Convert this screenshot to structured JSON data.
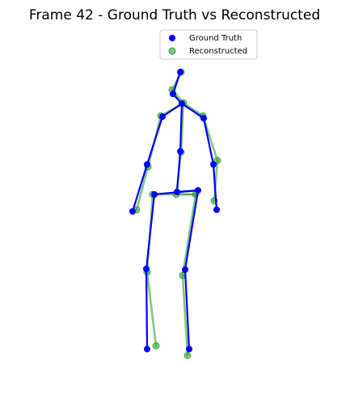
{
  "chart_data": {
    "type": "scatter",
    "title": "Frame 42 - Ground Truth vs Reconstructed",
    "xlabel": "",
    "ylabel": "",
    "axes_visible": false,
    "grid": false,
    "legend_position": "top-center",
    "bones": [
      [
        0,
        1
      ],
      [
        1,
        2
      ],
      [
        2,
        3
      ],
      [
        3,
        4
      ],
      [
        4,
        5
      ],
      [
        2,
        6
      ],
      [
        6,
        7
      ],
      [
        7,
        8
      ],
      [
        2,
        9
      ],
      [
        9,
        10
      ],
      [
        10,
        11
      ],
      [
        11,
        12
      ],
      [
        12,
        13
      ],
      [
        11,
        14
      ],
      [
        14,
        15
      ],
      [
        15,
        16
      ]
    ],
    "series": [
      {
        "name": "Ground Truth",
        "color": "#0000ff",
        "points": [
          [
            223,
            89
          ],
          [
            214,
            116
          ],
          [
            225,
            128
          ],
          [
            201,
            144
          ],
          [
            182,
            203
          ],
          [
            164,
            261
          ],
          [
            252,
            146
          ],
          [
            264,
            203
          ],
          [
            268,
            259
          ],
          [
            223,
            187
          ],
          [
            219,
            237
          ],
          [
            245,
            235
          ],
          [
            229,
            333
          ],
          [
            234,
            431
          ],
          [
            191,
            240
          ],
          [
            181,
            332
          ],
          [
            182,
            431
          ]
        ]
      },
      {
        "name": "Reconstructed",
        "color": "#2ca02c",
        "opacity": 0.6,
        "points": [
          [
            224,
            89
          ],
          [
            213,
            111
          ],
          [
            227,
            127
          ],
          [
            199,
            143
          ],
          [
            183,
            206
          ],
          [
            169,
            259
          ],
          [
            251,
            143
          ],
          [
            269,
            198
          ],
          [
            265,
            248
          ],
          [
            224,
            188
          ],
          [
            218,
            240
          ],
          [
            242,
            240
          ],
          [
            226,
            340
          ],
          [
            232,
            439
          ],
          [
            189,
            240
          ],
          [
            182,
            336
          ],
          [
            193,
            427
          ]
        ]
      }
    ]
  }
}
